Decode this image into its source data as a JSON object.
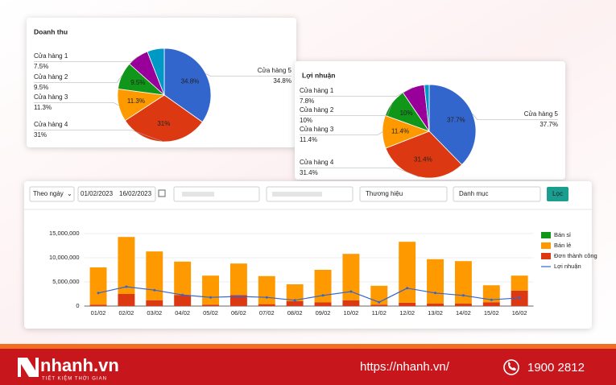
{
  "filters": {
    "period": "Theo ngày",
    "date_from": "01/02/2023",
    "date_to": "16/02/2023",
    "brand": "Thương hiệu",
    "category": "Danh mục",
    "button": "Lọc"
  },
  "chart_data": [
    {
      "type": "pie",
      "title": "Doanh thu",
      "categories": [
        "Cửa hàng 5",
        "Cửa hàng 4",
        "Cửa hàng 3",
        "Cửa hàng 2",
        "Cửa hàng 1",
        null
      ],
      "values": [
        34.8,
        31,
        11.3,
        9.5,
        7.5,
        5.9
      ],
      "value_labels": [
        "34.8%",
        "31%",
        "11.3%",
        "9.5%",
        "7.5%",
        null
      ],
      "colors": [
        "#3366cc",
        "#dc3912",
        "#ff9900",
        "#109618",
        "#990099",
        "#0099c6"
      ]
    },
    {
      "type": "pie",
      "title": "Lợi nhuận",
      "categories": [
        "Cửa hàng 5",
        "Cửa hàng 4",
        "Cửa hàng 3",
        "Cửa hàng 2",
        "Cửa hàng 1",
        null
      ],
      "values": [
        37.7,
        31.4,
        11.4,
        10,
        7.8,
        1.7
      ],
      "value_labels": [
        "37.7%",
        "31.4%",
        "11.4%",
        "10%",
        "7.8%",
        null
      ],
      "colors": [
        "#3366cc",
        "#dc3912",
        "#ff9900",
        "#109618",
        "#990099",
        "#0099c6"
      ]
    },
    {
      "type": "bar",
      "stacked": true,
      "categories": [
        "01/02",
        "02/02",
        "03/02",
        "04/02",
        "05/02",
        "06/02",
        "07/02",
        "08/02",
        "09/02",
        "10/02",
        "11/02",
        "12/02",
        "13/02",
        "14/02",
        "15/02",
        "16/02"
      ],
      "series": [
        {
          "name": "Bán sỉ",
          "color": "#109618",
          "values": [
            0,
            0,
            0,
            0,
            0,
            0,
            0,
            0,
            0,
            0,
            0,
            0,
            0,
            0,
            0,
            0
          ]
        },
        {
          "name": "Bán lẻ",
          "color": "#ff9900",
          "values": [
            7700000,
            11800000,
            10100000,
            6900000,
            6000000,
            6500000,
            5800000,
            3500000,
            6700000,
            9600000,
            3900000,
            12600000,
            9200000,
            8800000,
            3500000,
            3100000
          ]
        },
        {
          "name": "Đơn thành công",
          "color": "#dc3912",
          "values": [
            300000,
            2500000,
            1200000,
            2300000,
            300000,
            2300000,
            400000,
            1000000,
            800000,
            1200000,
            300000,
            700000,
            500000,
            500000,
            800000,
            3200000
          ]
        },
        {
          "name": "Lợi nhuận",
          "type": "line",
          "color": "#3366cc",
          "values": [
            2700000,
            4000000,
            3300000,
            2300000,
            1800000,
            2000000,
            1800000,
            1200000,
            2200000,
            3000000,
            800000,
            3700000,
            2700000,
            2200000,
            1300000,
            1700000
          ]
        }
      ],
      "ylim": [
        0,
        15000000
      ],
      "yticks": [
        0,
        {
          "value": 5000000,
          "label": "5,000,000"
        },
        {
          "value": 10000000,
          "label": "10,000,000"
        },
        {
          "value": 15000000,
          "label": "15,000,000"
        }
      ],
      "grid": true,
      "legend": "right"
    }
  ],
  "footer": {
    "logo": "nhanh.vn",
    "tagline": "TIẾT KIỆM THỜI GIAN",
    "url": "https://nhanh.vn/",
    "phone": "1900 2812"
  }
}
